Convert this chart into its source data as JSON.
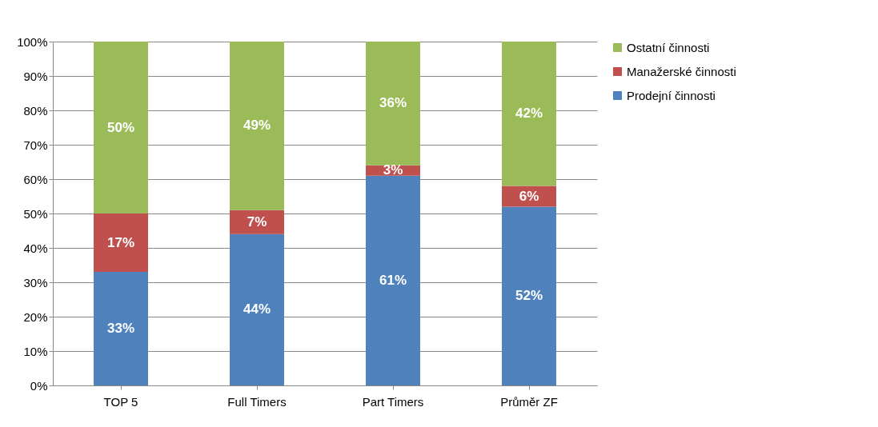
{
  "chart_data": {
    "type": "bar",
    "stacked": true,
    "categories": [
      "TOP 5",
      "Full Timers",
      "Part Timers",
      "Průměr ZF"
    ],
    "series": [
      {
        "name": "Prodejní činnosti",
        "color": "#4f81bd",
        "values": [
          33,
          44,
          61,
          52
        ],
        "value_labels": [
          "33%",
          "44%",
          "61%",
          "52%"
        ]
      },
      {
        "name": "Manažerské činnosti",
        "color": "#c0504d",
        "values": [
          17,
          7,
          3,
          6
        ],
        "value_labels": [
          "17%",
          "7%",
          "3%",
          "6%"
        ]
      },
      {
        "name": "Ostatní činnosti",
        "color": "#9bbb59",
        "values": [
          50,
          49,
          36,
          42
        ],
        "value_labels": [
          "50%",
          "49%",
          "36%",
          "42%"
        ]
      }
    ],
    "ylim": [
      0,
      100
    ],
    "yticks": [
      {
        "value": 0,
        "label": "0%"
      },
      {
        "value": 10,
        "label": "10%"
      },
      {
        "value": 20,
        "label": "20%"
      },
      {
        "value": 30,
        "label": "30%"
      },
      {
        "value": 40,
        "label": "40%"
      },
      {
        "value": 50,
        "label": "50%"
      },
      {
        "value": 60,
        "label": "60%"
      },
      {
        "value": 70,
        "label": "70%"
      },
      {
        "value": 80,
        "label": "80%"
      },
      {
        "value": 90,
        "label": "90%"
      },
      {
        "value": 100,
        "label": "100%"
      }
    ],
    "grid": "y",
    "legend": "right"
  }
}
